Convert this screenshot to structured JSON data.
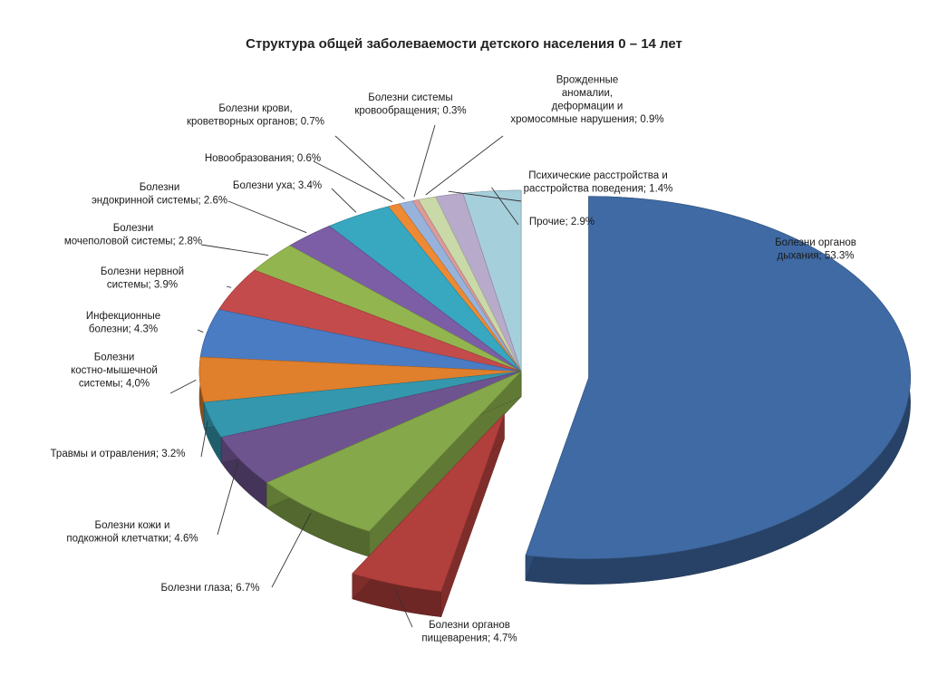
{
  "chart_data": {
    "type": "pie",
    "title": "Структура общей заболеваемости детского населения 0 – 14 лет",
    "slices": [
      {
        "label": "Болезни органов дыхания",
        "value": 53.3,
        "value_label": "53.3%",
        "color": "#3f6aa4",
        "exploded": true
      },
      {
        "label": "Болезни органов пищеварения",
        "value": 4.7,
        "value_label": "4.7%",
        "color": "#b13f3c",
        "exploded": true
      },
      {
        "label": "Болезни глаза",
        "value": 6.7,
        "value_label": "6.7%",
        "color": "#85a84a"
      },
      {
        "label": "Болезни кожи и подкожной клетчатки",
        "value": 4.6,
        "value_label": "4.6%",
        "color": "#6e548f"
      },
      {
        "label": "Травмы и отравления",
        "value": 3.2,
        "value_label": "3.2%",
        "color": "#3497ae"
      },
      {
        "label": "Болезни костно-мышечной системы",
        "value": 4.0,
        "value_label": "4,0%",
        "color": "#e07f2c"
      },
      {
        "label": "Инфекционные болезни",
        "value": 4.3,
        "value_label": "4.3%",
        "color": "#4a7cc4"
      },
      {
        "label": "Болезни нервной системы",
        "value": 3.9,
        "value_label": "3.9%",
        "color": "#c44b4b"
      },
      {
        "label": "Болезни мочеполовой системы",
        "value": 2.8,
        "value_label": "2.8%",
        "color": "#93b550"
      },
      {
        "label": "Болезни эндокринной системы",
        "value": 2.6,
        "value_label": "2.6%",
        "color": "#7b5ea5"
      },
      {
        "label": "Болезни уха",
        "value": 3.4,
        "value_label": "3.4%",
        "color": "#38a7c0"
      },
      {
        "label": "Новообразования",
        "value": 0.6,
        "value_label": "0.6%",
        "color": "#ee8a33"
      },
      {
        "label": "Болезни крови, кроветворных органов",
        "value": 0.7,
        "value_label": "0.7%",
        "color": "#97b3dc"
      },
      {
        "label": "Болезни системы кровообращения",
        "value": 0.3,
        "value_label": "0.3%",
        "color": "#dc9a98"
      },
      {
        "label": "Врожденные аномалии, деформации и хромосомные нарушения",
        "value": 0.9,
        "value_label": "0.9%",
        "color": "#c9d9a8"
      },
      {
        "label": "Психические расстройства и расстройства поведения",
        "value": 1.4,
        "value_label": "1.4%",
        "color": "#b7aacb"
      },
      {
        "label": "Прочие",
        "value": 2.9,
        "value_label": "2.9%",
        "color": "#a6cfdc"
      }
    ],
    "data_labels": "outside-with-leader-lines",
    "legend": "none",
    "style": "3d-exploded-pie"
  }
}
